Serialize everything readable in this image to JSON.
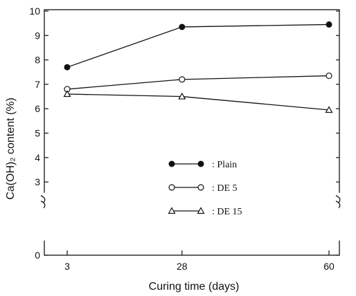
{
  "chart_data": {
    "type": "line",
    "x": [
      3,
      28,
      60
    ],
    "x_tick_labels": [
      "3",
      "28",
      "60"
    ],
    "series": [
      {
        "name": ": Plain",
        "marker": "filled-circle",
        "values": [
          7.7,
          9.35,
          9.45
        ]
      },
      {
        "name": ": DE 5",
        "marker": "open-circle",
        "values": [
          6.8,
          7.2,
          7.35
        ]
      },
      {
        "name": ": DE 15",
        "marker": "open-triangle",
        "values": [
          6.6,
          6.5,
          5.95
        ]
      }
    ],
    "y_ticks": [
      0,
      3,
      4,
      5,
      6,
      7,
      8,
      9,
      10
    ],
    "y_axis_break": [
      0,
      2.5
    ],
    "ylim": [
      0,
      10
    ],
    "xlabel": "Curing time  (days)",
    "ylabel": "Ca(OH)₂ content  (%)",
    "legend_position": "center-left",
    "grid": false,
    "marker_color": "#111111"
  }
}
